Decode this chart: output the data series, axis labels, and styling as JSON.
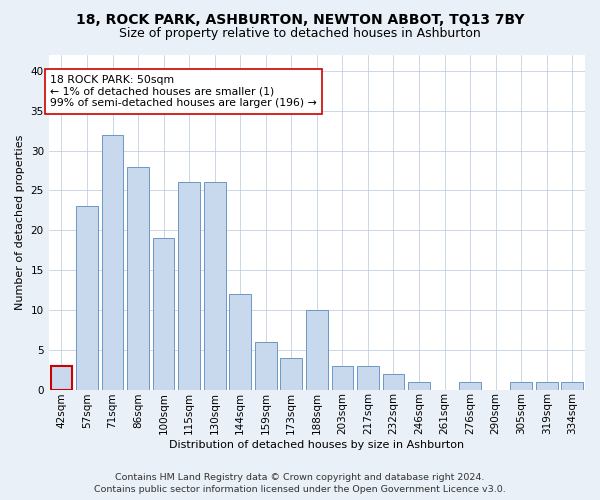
{
  "title": "18, ROCK PARK, ASHBURTON, NEWTON ABBOT, TQ13 7BY",
  "subtitle": "Size of property relative to detached houses in Ashburton",
  "xlabel": "Distribution of detached houses by size in Ashburton",
  "ylabel": "Number of detached properties",
  "categories": [
    "42sqm",
    "57sqm",
    "71sqm",
    "86sqm",
    "100sqm",
    "115sqm",
    "130sqm",
    "144sqm",
    "159sqm",
    "173sqm",
    "188sqm",
    "203sqm",
    "217sqm",
    "232sqm",
    "246sqm",
    "261sqm",
    "276sqm",
    "290sqm",
    "305sqm",
    "319sqm",
    "334sqm"
  ],
  "values": [
    3,
    23,
    32,
    28,
    19,
    26,
    26,
    12,
    6,
    4,
    10,
    3,
    3,
    2,
    1,
    0,
    1,
    0,
    1,
    1,
    1
  ],
  "bar_color": "#c8d9ee",
  "bar_edge_color": "#5a8abf",
  "highlight_bar_index": 0,
  "highlight_bar_edge_color": "#cc0000",
  "annotation_text": "18 ROCK PARK: 50sqm\n← 1% of detached houses are smaller (1)\n99% of semi-detached houses are larger (196) →",
  "annotation_box_edge_color": "#cc0000",
  "annotation_box_face_color": "#ffffff",
  "ylim": [
    0,
    42
  ],
  "yticks": [
    0,
    5,
    10,
    15,
    20,
    25,
    30,
    35,
    40
  ],
  "footer_line1": "Contains HM Land Registry data © Crown copyright and database right 2024.",
  "footer_line2": "Contains public sector information licensed under the Open Government Licence v3.0.",
  "bg_color": "#eaf0f8",
  "plot_bg_color": "#ffffff",
  "title_fontsize": 10,
  "subtitle_fontsize": 9,
  "axis_label_fontsize": 8,
  "tick_fontsize": 7.5,
  "footer_fontsize": 6.8,
  "annotation_fontsize": 7.8
}
